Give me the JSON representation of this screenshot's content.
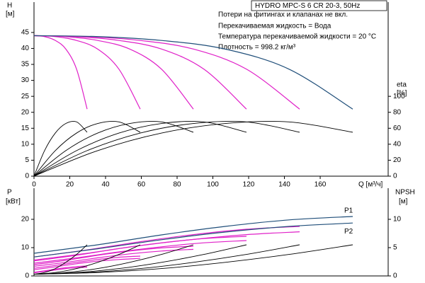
{
  "chart_data": [
    {
      "type": "line",
      "title": "HYDRO MPC-S 6 CR 20-3, 50Hz",
      "annotations": [
        "Потери на фитингах и клапанах не вкл.",
        "Перекачиваемая жидкость = Вода",
        "Температура перекачиваемой жидкости = 20 °C",
        "Плотность = 998.2 кг/м³"
      ],
      "y_label": "H",
      "y_unit": "[м]",
      "y2_label": "eta",
      "y2_unit": "[%]",
      "x_label": "Q [м³/ч]",
      "xlim": [
        0,
        198
      ],
      "xticks": [
        0,
        20,
        40,
        60,
        80,
        100,
        120,
        140,
        160
      ],
      "ylim": [
        0,
        54.5
      ],
      "yticks": [
        0,
        5,
        10,
        15,
        20,
        25,
        30,
        35,
        40,
        45
      ],
      "y2lim": [
        0,
        218
      ],
      "y2ticks": [
        0,
        20,
        40,
        60,
        80,
        100
      ],
      "series": [
        {
          "color": "#e020c8",
          "x": [
            0,
            5.9,
            11.9,
            17.8,
            23.8,
            29.7
          ],
          "values": [
            44,
            43.7,
            42.5,
            39.8,
            33.5,
            21
          ]
        },
        {
          "color": "#e020c8",
          "x": [
            0,
            11.9,
            23.8,
            35.6,
            47.5,
            59.4
          ],
          "values": [
            44,
            43.7,
            42.5,
            39.8,
            33.5,
            21
          ]
        },
        {
          "color": "#e020c8",
          "x": [
            0,
            17.8,
            35.6,
            53.5,
            71.3,
            89.1
          ],
          "values": [
            44,
            43.7,
            42.5,
            39.8,
            33.5,
            21
          ]
        },
        {
          "color": "#e020c8",
          "x": [
            0,
            23.8,
            47.5,
            71.3,
            95,
            118.8
          ],
          "values": [
            44,
            43.7,
            42.5,
            39.8,
            33.5,
            21
          ]
        },
        {
          "color": "#e020c8",
          "x": [
            0,
            29.7,
            59.4,
            89.1,
            118.8,
            148.5
          ],
          "values": [
            44,
            43.7,
            42.5,
            39.8,
            33.5,
            21
          ]
        },
        {
          "color": "#1f4e79",
          "x": [
            0,
            35.6,
            71.3,
            106.9,
            142.6,
            178.2
          ],
          "values": [
            44,
            43.7,
            42.5,
            39.8,
            33.5,
            21
          ]
        },
        {
          "color": "#000000",
          "axis": "y2",
          "x": [
            0,
            5.9,
            11.9,
            17.8,
            23.8,
            29.7
          ],
          "values": [
            0,
            32,
            54,
            66,
            68,
            55
          ]
        },
        {
          "color": "#000000",
          "axis": "y2",
          "x": [
            0,
            11.9,
            23.8,
            35.6,
            47.5,
            59.4
          ],
          "values": [
            0,
            32,
            54,
            66,
            68,
            55
          ]
        },
        {
          "color": "#000000",
          "axis": "y2",
          "x": [
            0,
            17.8,
            35.6,
            53.5,
            71.3,
            89.1
          ],
          "values": [
            0,
            32,
            54,
            66,
            68,
            55
          ]
        },
        {
          "color": "#000000",
          "axis": "y2",
          "x": [
            0,
            23.8,
            47.5,
            71.3,
            95,
            118.8
          ],
          "values": [
            0,
            32,
            54,
            66,
            68,
            55
          ]
        },
        {
          "color": "#000000",
          "axis": "y2",
          "x": [
            0,
            29.7,
            59.4,
            89.1,
            118.8,
            148.5
          ],
          "values": [
            0,
            32,
            54,
            66,
            68,
            55
          ]
        },
        {
          "color": "#000000",
          "axis": "y2",
          "x": [
            0,
            35.6,
            71.3,
            106.9,
            142.6,
            178.2
          ],
          "values": [
            0,
            32,
            54,
            66,
            68,
            55
          ]
        }
      ]
    },
    {
      "type": "line",
      "y_label": "P",
      "y_unit": "[кВт]",
      "y2_label": "NPSH",
      "y2_unit": "[м]",
      "xlim": [
        0,
        198
      ],
      "ylim": [
        0,
        31
      ],
      "yticks": [
        0,
        10,
        20
      ],
      "y2lim": [
        0,
        15.5
      ],
      "y2ticks": [
        0,
        5,
        10
      ],
      "series": [
        {
          "color": "#e020c8",
          "x": [
            0,
            5.9,
            11.9,
            17.8,
            23.8,
            29.7
          ],
          "values": [
            1.3,
            1.8,
            2.4,
            2.9,
            3.3,
            3.5
          ]
        },
        {
          "color": "#e020c8",
          "x": [
            0,
            11.9,
            23.8,
            35.6,
            47.5,
            59.4
          ],
          "values": [
            2.7,
            3.7,
            4.8,
            5.8,
            6.6,
            7
          ]
        },
        {
          "color": "#e020c8",
          "x": [
            0,
            17.8,
            35.6,
            53.5,
            71.3,
            89.1
          ],
          "values": [
            4,
            5.5,
            7.3,
            8.8,
            9.9,
            10.5
          ]
        },
        {
          "color": "#e020c8",
          "x": [
            0,
            23.8,
            47.5,
            71.3,
            95,
            118.8
          ],
          "values": [
            5.3,
            7.3,
            9.7,
            11.7,
            13.2,
            14
          ]
        },
        {
          "color": "#e020c8",
          "x": [
            0,
            29.7,
            59.4,
            89.1,
            118.8,
            148.5
          ],
          "values": [
            6.7,
            9.2,
            12.1,
            14.6,
            16.5,
            17.5
          ]
        },
        {
          "color": "#e020c8",
          "x": [
            0,
            5.9,
            11.9,
            17.8,
            23.8,
            29.7
          ],
          "values": [
            1.1,
            1.6,
            2.1,
            2.6,
            2.9,
            3.1
          ]
        },
        {
          "color": "#e020c8",
          "x": [
            0,
            11.9,
            23.8,
            35.6,
            47.5,
            59.4
          ],
          "values": [
            2.2,
            3.2,
            4.3,
            5.2,
            5.8,
            6.2
          ]
        },
        {
          "color": "#e020c8",
          "x": [
            0,
            17.8,
            35.6,
            53.5,
            71.3,
            89.1
          ],
          "values": [
            3.4,
            4.8,
            6.4,
            7.8,
            8.8,
            9.4
          ]
        },
        {
          "color": "#e020c8",
          "x": [
            0,
            23.8,
            47.5,
            71.3,
            95,
            118.8
          ],
          "values": [
            4.5,
            6.4,
            8.5,
            10.3,
            11.7,
            12.5
          ]
        },
        {
          "color": "#e020c8",
          "x": [
            0,
            29.7,
            59.4,
            89.1,
            118.8,
            148.5
          ],
          "values": [
            5.6,
            8,
            10.7,
            12.9,
            14.6,
            15.6
          ]
        },
        {
          "name": "P1",
          "color": "#1f4e79",
          "x": [
            0,
            35.6,
            71.3,
            106.9,
            142.6,
            178.2
          ],
          "values": [
            8,
            11,
            14.5,
            17.5,
            19.8,
            21
          ]
        },
        {
          "name": "P2",
          "color": "#1f4e79",
          "x": [
            0,
            35.6,
            71.3,
            106.9,
            142.6,
            178.2
          ],
          "values": [
            6.7,
            9.6,
            12.8,
            15.5,
            17.5,
            18.7
          ]
        },
        {
          "color": "#000000",
          "axis": "y2",
          "x": [
            0,
            5.9,
            11.9,
            17.8,
            23.8,
            29.7
          ],
          "values": [
            0.3,
            0.6,
            1.3,
            2.4,
            3.8,
            5.5
          ]
        },
        {
          "color": "#000000",
          "axis": "y2",
          "x": [
            0,
            11.9,
            23.8,
            35.6,
            47.5,
            59.4
          ],
          "values": [
            0.3,
            0.6,
            1.3,
            2.4,
            3.8,
            5.5
          ]
        },
        {
          "color": "#000000",
          "axis": "y2",
          "x": [
            0,
            17.8,
            35.6,
            53.5,
            71.3,
            89.1
          ],
          "values": [
            0.3,
            0.6,
            1.3,
            2.4,
            3.8,
            5.5
          ]
        },
        {
          "color": "#000000",
          "axis": "y2",
          "x": [
            0,
            23.8,
            47.5,
            71.3,
            95,
            118.8
          ],
          "values": [
            0.3,
            0.6,
            1.3,
            2.4,
            3.8,
            5.5
          ]
        },
        {
          "color": "#000000",
          "axis": "y2",
          "x": [
            0,
            29.7,
            59.4,
            89.1,
            118.8,
            148.5
          ],
          "values": [
            0.3,
            0.6,
            1.3,
            2.4,
            3.8,
            5.5
          ]
        },
        {
          "color": "#000000",
          "axis": "y2",
          "x": [
            0,
            35.6,
            71.3,
            106.9,
            142.6,
            178.2
          ],
          "values": [
            0.3,
            0.6,
            1.3,
            2.4,
            3.8,
            5.5
          ]
        }
      ]
    }
  ]
}
